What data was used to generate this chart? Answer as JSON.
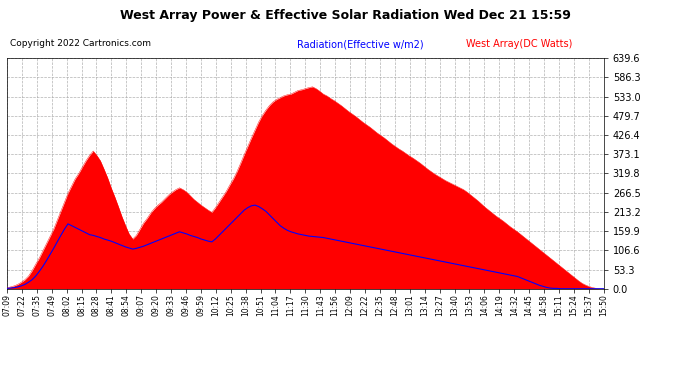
{
  "title": "West Array Power & Effective Solar Radiation Wed Dec 21 15:59",
  "copyright": "Copyright 2022 Cartronics.com",
  "legend_radiation": "Radiation(Effective w/m2)",
  "legend_west": "West Array(DC Watts)",
  "ymax": 639.6,
  "yticks": [
    0.0,
    53.3,
    106.6,
    159.9,
    213.2,
    266.5,
    319.8,
    373.1,
    426.4,
    479.7,
    533.0,
    586.3,
    639.6
  ],
  "radiation_color": "#FF0000",
  "west_color": "#0000FF",
  "fill_color": "#FF0000",
  "background_color": "#FFFFFF",
  "plot_bg_color": "#FFFFFF",
  "grid_color": "#AAAAAA",
  "title_color": "#000000",
  "copyright_color": "#000000",
  "legend_radiation_color": "#0000FF",
  "legend_west_color": "#FF0000",
  "tick_label_color": "#000000",
  "xtick_color": "#000000",
  "time_labels": [
    "07:09",
    "07:22",
    "07:35",
    "07:49",
    "08:02",
    "08:15",
    "08:28",
    "08:41",
    "08:54",
    "09:07",
    "09:20",
    "09:33",
    "09:46",
    "09:59",
    "10:12",
    "10:25",
    "10:38",
    "10:51",
    "11:04",
    "11:17",
    "11:30",
    "11:43",
    "11:56",
    "12:09",
    "12:22",
    "12:35",
    "12:48",
    "13:01",
    "13:14",
    "13:27",
    "13:40",
    "13:53",
    "14:06",
    "14:19",
    "14:32",
    "14:45",
    "14:58",
    "15:11",
    "15:24",
    "15:37",
    "15:50"
  ],
  "radiation": [
    3,
    5,
    8,
    12,
    18,
    25,
    35,
    50,
    68,
    85,
    105,
    125,
    145,
    165,
    190,
    215,
    240,
    265,
    285,
    305,
    320,
    338,
    355,
    370,
    382,
    370,
    355,
    332,
    308,
    280,
    255,
    228,
    200,
    175,
    152,
    138,
    148,
    165,
    182,
    195,
    210,
    222,
    232,
    240,
    250,
    260,
    268,
    275,
    280,
    275,
    268,
    258,
    248,
    240,
    232,
    225,
    218,
    212,
    225,
    240,
    255,
    270,
    288,
    305,
    325,
    348,
    372,
    395,
    418,
    440,
    462,
    480,
    495,
    508,
    518,
    525,
    530,
    535,
    538,
    540,
    545,
    550,
    552,
    555,
    558,
    560,
    555,
    548,
    540,
    535,
    528,
    522,
    515,
    508,
    500,
    492,
    485,
    478,
    470,
    462,
    455,
    448,
    440,
    432,
    425,
    418,
    410,
    402,
    395,
    388,
    382,
    375,
    368,
    362,
    355,
    348,
    340,
    332,
    325,
    318,
    312,
    306,
    300,
    295,
    290,
    285,
    280,
    275,
    268,
    260,
    252,
    244,
    235,
    226,
    218,
    210,
    202,
    195,
    188,
    180,
    172,
    165,
    158,
    150,
    142,
    134,
    126,
    118,
    110,
    102,
    94,
    86,
    78,
    70,
    62,
    54,
    46,
    38,
    30,
    22,
    15,
    10,
    6,
    3,
    1,
    0,
    0
  ],
  "west": [
    1,
    2,
    3,
    5,
    8,
    12,
    18,
    25,
    35,
    48,
    62,
    78,
    95,
    112,
    130,
    148,
    165,
    180,
    175,
    170,
    165,
    160,
    155,
    150,
    148,
    145,
    142,
    138,
    135,
    132,
    128,
    124,
    120,
    116,
    113,
    110,
    112,
    115,
    118,
    122,
    126,
    130,
    134,
    138,
    142,
    146,
    150,
    154,
    158,
    155,
    152,
    148,
    145,
    142,
    138,
    135,
    132,
    130,
    138,
    148,
    158,
    168,
    178,
    188,
    198,
    208,
    218,
    225,
    230,
    232,
    228,
    222,
    215,
    205,
    195,
    185,
    175,
    168,
    162,
    158,
    155,
    152,
    150,
    148,
    146,
    145,
    144,
    143,
    142,
    140,
    138,
    136,
    134,
    132,
    130,
    128,
    126,
    124,
    122,
    120,
    118,
    116,
    114,
    112,
    110,
    108,
    106,
    104,
    102,
    100,
    98,
    96,
    94,
    92,
    90,
    88,
    86,
    84,
    82,
    80,
    78,
    76,
    74,
    72,
    70,
    68,
    66,
    64,
    62,
    60,
    58,
    56,
    54,
    52,
    50,
    48,
    46,
    44,
    42,
    40,
    38,
    36,
    34,
    30,
    26,
    22,
    18,
    14,
    10,
    7,
    4,
    2,
    1,
    1,
    0,
    0,
    0,
    0,
    0,
    0,
    0,
    0,
    0,
    0,
    0,
    0,
    0
  ]
}
